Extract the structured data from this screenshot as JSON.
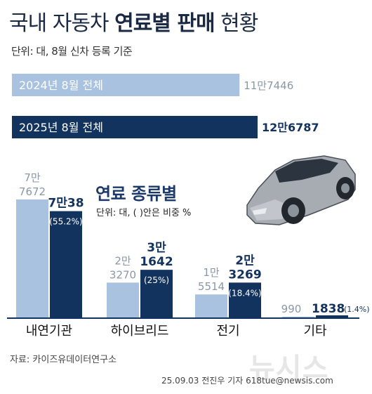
{
  "header": {
    "title_regular": "국내 자동차",
    "title_bold": "연료별 판매",
    "title_tail": "현황",
    "subtitle": "단위: 대, 8월 신차 등록 기준"
  },
  "legend": {
    "fuel_title": "연료 종류별",
    "fuel_unit": "단위: 대, ( )안은 비중 %"
  },
  "footer": {
    "source": "자료: 카이즈유데이터연구소",
    "credit": "25.09.03 전진우 기자 618tue@newsis.com",
    "watermark": "뉴시스"
  },
  "colors": {
    "light": "#a9c2df",
    "dark": "#13335f",
    "text_light": "#8a97a8",
    "text_dark": "#13335f"
  },
  "chart_data": [
    {
      "type": "bar",
      "orientation": "horizontal",
      "categories": [
        "2024년 8월 전체",
        "2025년 8월 전체"
      ],
      "values": [
        117446,
        126787
      ],
      "value_labels": [
        "11만7446",
        "12만6787"
      ]
    },
    {
      "type": "bar",
      "categories": [
        "내연기관",
        "하이브리드",
        "전기",
        "기타"
      ],
      "series": [
        {
          "name": "2024년 8월",
          "values": [
            77672,
            23270,
            15514,
            990
          ],
          "value_labels": [
            [
              "7만",
              "7672"
            ],
            [
              "2만",
              "3270"
            ],
            [
              "1만",
              "5514"
            ],
            [
              "990"
            ]
          ]
        },
        {
          "name": "2025년 8월",
          "values": [
            70038,
            31642,
            23269,
            1838
          ],
          "value_labels": [
            [
              "7만38"
            ],
            [
              "3만",
              "1642"
            ],
            [
              "2만",
              "3269"
            ],
            [
              "1838"
            ]
          ],
          "shares": [
            "(55.2%)",
            "(25%)",
            "(18.4%)",
            "(1.4%)"
          ]
        }
      ]
    }
  ]
}
